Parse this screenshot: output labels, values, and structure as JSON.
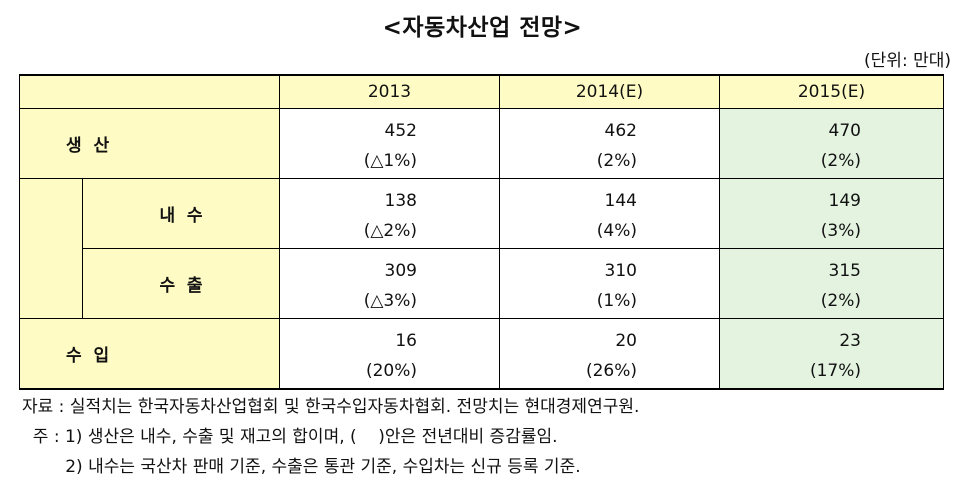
{
  "title": "<자동차산업 전망>",
  "unit": "(단위: 만대)",
  "table": {
    "headers": [
      "2013",
      "2014(E)",
      "2015(E)"
    ],
    "rows": [
      {
        "label": "생  산",
        "values": [
          "452",
          "462",
          "470"
        ],
        "changes": [
          "(△1%)",
          "(2%)",
          "(2%)"
        ]
      },
      {
        "label": "내  수",
        "values": [
          "138",
          "144",
          "149"
        ],
        "changes": [
          "(△2%)",
          "(4%)",
          "(3%)"
        ]
      },
      {
        "label": "수  출",
        "values": [
          "309",
          "310",
          "315"
        ],
        "changes": [
          "(△3%)",
          "(1%)",
          "(2%)"
        ]
      },
      {
        "label": "수  입",
        "values": [
          "16",
          "20",
          "23"
        ],
        "changes": [
          "(20%)",
          "(26%)",
          "(17%)"
        ]
      }
    ]
  },
  "notes": {
    "source": "자료 : 실적치는 한국자동차산업협회 및 한국수입자동차협회. 전망치는 현대경제연구원.",
    "note1": "  주 : 1) 생산은 내수, 수출 및 재고의 합이며, (    )안은 전년대비 증감률임.",
    "note2": "        2) 내수는 국산차 판매 기준, 수출은 통관 기준, 수입차는 신규 등록 기준."
  },
  "colors": {
    "header_bg": "#fefcc4",
    "label_bg": "#fefcc4",
    "forecast_2015_bg": "#e3f3e0"
  }
}
